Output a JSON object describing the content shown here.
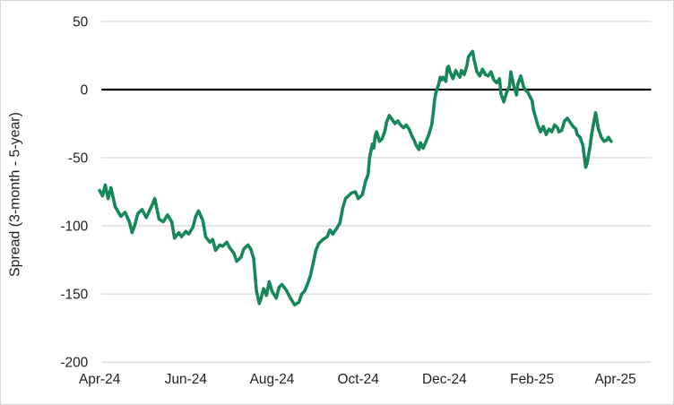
{
  "chart": {
    "colors": {
      "line": "#168758",
      "zero_line": "#000000",
      "gridline": "#D9D9D9",
      "text": "#1F1F1F",
      "background": "#FFFFFF",
      "border": "#D7D7D7"
    },
    "line_width": 3.6,
    "zero_line_width": 2.3,
    "gridline_width": 1.3
  },
  "chart_data": {
    "type": "line",
    "title": "",
    "xlabel": "",
    "ylabel": "Spread (3-month - 5-year)",
    "ylim": [
      -200,
      50
    ],
    "y_ticks": [
      50,
      0,
      -50,
      -100,
      -150,
      -200
    ],
    "x_tick_labels": [
      "Apr-24",
      "Jun-24",
      "Aug-24",
      "Oct-24",
      "Dec-24",
      "Feb-25",
      "Apr-25"
    ],
    "x_tick_dates": [
      "2024-04-01",
      "2024-06-01",
      "2024-08-01",
      "2024-10-01",
      "2024-12-01",
      "2025-02-01",
      "2025-04-01"
    ],
    "grid": true,
    "legend": "none",
    "series": [
      {
        "name": "Spread (3-month - 5-year)",
        "points": [
          [
            "2024-04-01",
            -74
          ],
          [
            "2024-04-03",
            -78
          ],
          [
            "2024-04-05",
            -70
          ],
          [
            "2024-04-07",
            -80
          ],
          [
            "2024-04-09",
            -72
          ],
          [
            "2024-04-12",
            -86
          ],
          [
            "2024-04-16",
            -93
          ],
          [
            "2024-04-19",
            -90
          ],
          [
            "2024-04-22",
            -97
          ],
          [
            "2024-04-24",
            -105
          ],
          [
            "2024-04-26",
            -99
          ],
          [
            "2024-04-28",
            -91
          ],
          [
            "2024-05-01",
            -88
          ],
          [
            "2024-05-04",
            -94
          ],
          [
            "2024-05-08",
            -85
          ],
          [
            "2024-05-10",
            -80
          ],
          [
            "2024-05-13",
            -95
          ],
          [
            "2024-05-16",
            -97
          ],
          [
            "2024-05-19",
            -92
          ],
          [
            "2024-05-22",
            -97
          ],
          [
            "2024-05-24",
            -109
          ],
          [
            "2024-05-27",
            -105
          ],
          [
            "2024-05-29",
            -108
          ],
          [
            "2024-06-01",
            -104
          ],
          [
            "2024-06-03",
            -106
          ],
          [
            "2024-06-06",
            -101
          ],
          [
            "2024-06-08",
            -93
          ],
          [
            "2024-06-10",
            -89
          ],
          [
            "2024-06-13",
            -96
          ],
          [
            "2024-06-15",
            -108
          ],
          [
            "2024-06-18",
            -112
          ],
          [
            "2024-06-20",
            -110
          ],
          [
            "2024-06-22",
            -118
          ],
          [
            "2024-06-25",
            -114
          ],
          [
            "2024-06-27",
            -115
          ],
          [
            "2024-06-30",
            -112
          ],
          [
            "2024-07-02",
            -116
          ],
          [
            "2024-07-05",
            -120
          ],
          [
            "2024-07-07",
            -126
          ],
          [
            "2024-07-10",
            -123
          ],
          [
            "2024-07-12",
            -117
          ],
          [
            "2024-07-15",
            -114
          ],
          [
            "2024-07-17",
            -117
          ],
          [
            "2024-07-19",
            -124
          ],
          [
            "2024-07-21",
            -148
          ],
          [
            "2024-07-23",
            -157
          ],
          [
            "2024-07-24",
            -154
          ],
          [
            "2024-07-26",
            -146
          ],
          [
            "2024-07-28",
            -151
          ],
          [
            "2024-07-30",
            -141
          ],
          [
            "2024-08-01",
            -148
          ],
          [
            "2024-08-04",
            -153
          ],
          [
            "2024-08-06",
            -145
          ],
          [
            "2024-08-08",
            -143
          ],
          [
            "2024-08-11",
            -147
          ],
          [
            "2024-08-14",
            -153
          ],
          [
            "2024-08-17",
            -158
          ],
          [
            "2024-08-20",
            -156
          ],
          [
            "2024-08-22",
            -150
          ],
          [
            "2024-08-24",
            -148
          ],
          [
            "2024-08-26",
            -143
          ],
          [
            "2024-08-28",
            -137
          ],
          [
            "2024-08-30",
            -128
          ],
          [
            "2024-09-01",
            -118
          ],
          [
            "2024-09-03",
            -113
          ],
          [
            "2024-09-06",
            -110
          ],
          [
            "2024-09-09",
            -108
          ],
          [
            "2024-09-11",
            -103
          ],
          [
            "2024-09-13",
            -106
          ],
          [
            "2024-09-15",
            -103
          ],
          [
            "2024-09-18",
            -98
          ],
          [
            "2024-09-20",
            -87
          ],
          [
            "2024-09-22",
            -80
          ],
          [
            "2024-09-24",
            -78
          ],
          [
            "2024-09-26",
            -76
          ],
          [
            "2024-09-29",
            -75
          ],
          [
            "2024-10-01",
            -80
          ],
          [
            "2024-10-04",
            -77
          ],
          [
            "2024-10-06",
            -68
          ],
          [
            "2024-10-08",
            -62
          ],
          [
            "2024-10-09",
            -50
          ],
          [
            "2024-10-11",
            -40
          ],
          [
            "2024-10-12",
            -43
          ],
          [
            "2024-10-13",
            -34
          ],
          [
            "2024-10-14",
            -31
          ],
          [
            "2024-10-16",
            -38
          ],
          [
            "2024-10-18",
            -36
          ],
          [
            "2024-10-20",
            -30
          ],
          [
            "2024-10-21",
            -24
          ],
          [
            "2024-10-23",
            -19
          ],
          [
            "2024-10-25",
            -22
          ],
          [
            "2024-10-27",
            -25
          ],
          [
            "2024-10-29",
            -23
          ],
          [
            "2024-10-31",
            -26
          ],
          [
            "2024-11-02",
            -28
          ],
          [
            "2024-11-04",
            -26
          ],
          [
            "2024-11-06",
            -29
          ],
          [
            "2024-11-08",
            -34
          ],
          [
            "2024-11-10",
            -38
          ],
          [
            "2024-11-11",
            -41
          ],
          [
            "2024-11-13",
            -44
          ],
          [
            "2024-11-14",
            -39
          ],
          [
            "2024-11-16",
            -43
          ],
          [
            "2024-11-18",
            -38
          ],
          [
            "2024-11-20",
            -33
          ],
          [
            "2024-11-22",
            -26
          ],
          [
            "2024-11-23",
            -18
          ],
          [
            "2024-11-24",
            -8
          ],
          [
            "2024-11-25",
            -2
          ],
          [
            "2024-11-27",
            4
          ],
          [
            "2024-11-28",
            9
          ],
          [
            "2024-11-29",
            7
          ],
          [
            "2024-11-30",
            9
          ],
          [
            "2024-12-02",
            6
          ],
          [
            "2024-12-03",
            16
          ],
          [
            "2024-12-04",
            17
          ],
          [
            "2024-12-05",
            13
          ],
          [
            "2024-12-07",
            8
          ],
          [
            "2024-12-09",
            14
          ],
          [
            "2024-12-10",
            12
          ],
          [
            "2024-12-12",
            9
          ],
          [
            "2024-12-13",
            14
          ],
          [
            "2024-12-15",
            11
          ],
          [
            "2024-12-17",
            18
          ],
          [
            "2024-12-18",
            24
          ],
          [
            "2024-12-20",
            27
          ],
          [
            "2024-12-21",
            28
          ],
          [
            "2024-12-22",
            22
          ],
          [
            "2024-12-24",
            13
          ],
          [
            "2024-12-26",
            10
          ],
          [
            "2024-12-28",
            15
          ],
          [
            "2024-12-30",
            11
          ],
          [
            "2025-01-01",
            10
          ],
          [
            "2025-01-03",
            13
          ],
          [
            "2025-01-05",
            7
          ],
          [
            "2025-01-07",
            5
          ],
          [
            "2025-01-09",
            8
          ],
          [
            "2025-01-10",
            -3
          ],
          [
            "2025-01-12",
            -9
          ],
          [
            "2025-01-14",
            -2
          ],
          [
            "2025-01-16",
            2
          ],
          [
            "2025-01-17",
            13
          ],
          [
            "2025-01-19",
            3
          ],
          [
            "2025-01-21",
            -4
          ],
          [
            "2025-01-22",
            4
          ],
          [
            "2025-01-24",
            10
          ],
          [
            "2025-01-26",
            2
          ],
          [
            "2025-01-27",
            0
          ],
          [
            "2025-01-29",
            -2
          ],
          [
            "2025-02-01",
            -8
          ],
          [
            "2025-02-02",
            -15
          ],
          [
            "2025-02-04",
            -22
          ],
          [
            "2025-02-05",
            -26
          ],
          [
            "2025-02-07",
            -31
          ],
          [
            "2025-02-09",
            -27
          ],
          [
            "2025-02-11",
            -33
          ],
          [
            "2025-02-13",
            -29
          ],
          [
            "2025-02-15",
            -31
          ],
          [
            "2025-02-17",
            -26
          ],
          [
            "2025-02-19",
            -28
          ],
          [
            "2025-02-20",
            -31
          ],
          [
            "2025-02-22",
            -30
          ],
          [
            "2025-02-24",
            -23
          ],
          [
            "2025-02-26",
            -21
          ],
          [
            "2025-02-28",
            -24
          ],
          [
            "2025-03-02",
            -27
          ],
          [
            "2025-03-04",
            -29
          ],
          [
            "2025-03-05",
            -33
          ],
          [
            "2025-03-07",
            -35
          ],
          [
            "2025-03-09",
            -41
          ],
          [
            "2025-03-11",
            -57
          ],
          [
            "2025-03-12",
            -54
          ],
          [
            "2025-03-14",
            -42
          ],
          [
            "2025-03-15",
            -34
          ],
          [
            "2025-03-16",
            -28
          ],
          [
            "2025-03-18",
            -17
          ],
          [
            "2025-03-20",
            -29
          ],
          [
            "2025-03-22",
            -35
          ],
          [
            "2025-03-24",
            -38
          ],
          [
            "2025-03-26",
            -37
          ],
          [
            "2025-03-27",
            -35
          ],
          [
            "2025-03-29",
            -38
          ]
        ]
      }
    ]
  }
}
